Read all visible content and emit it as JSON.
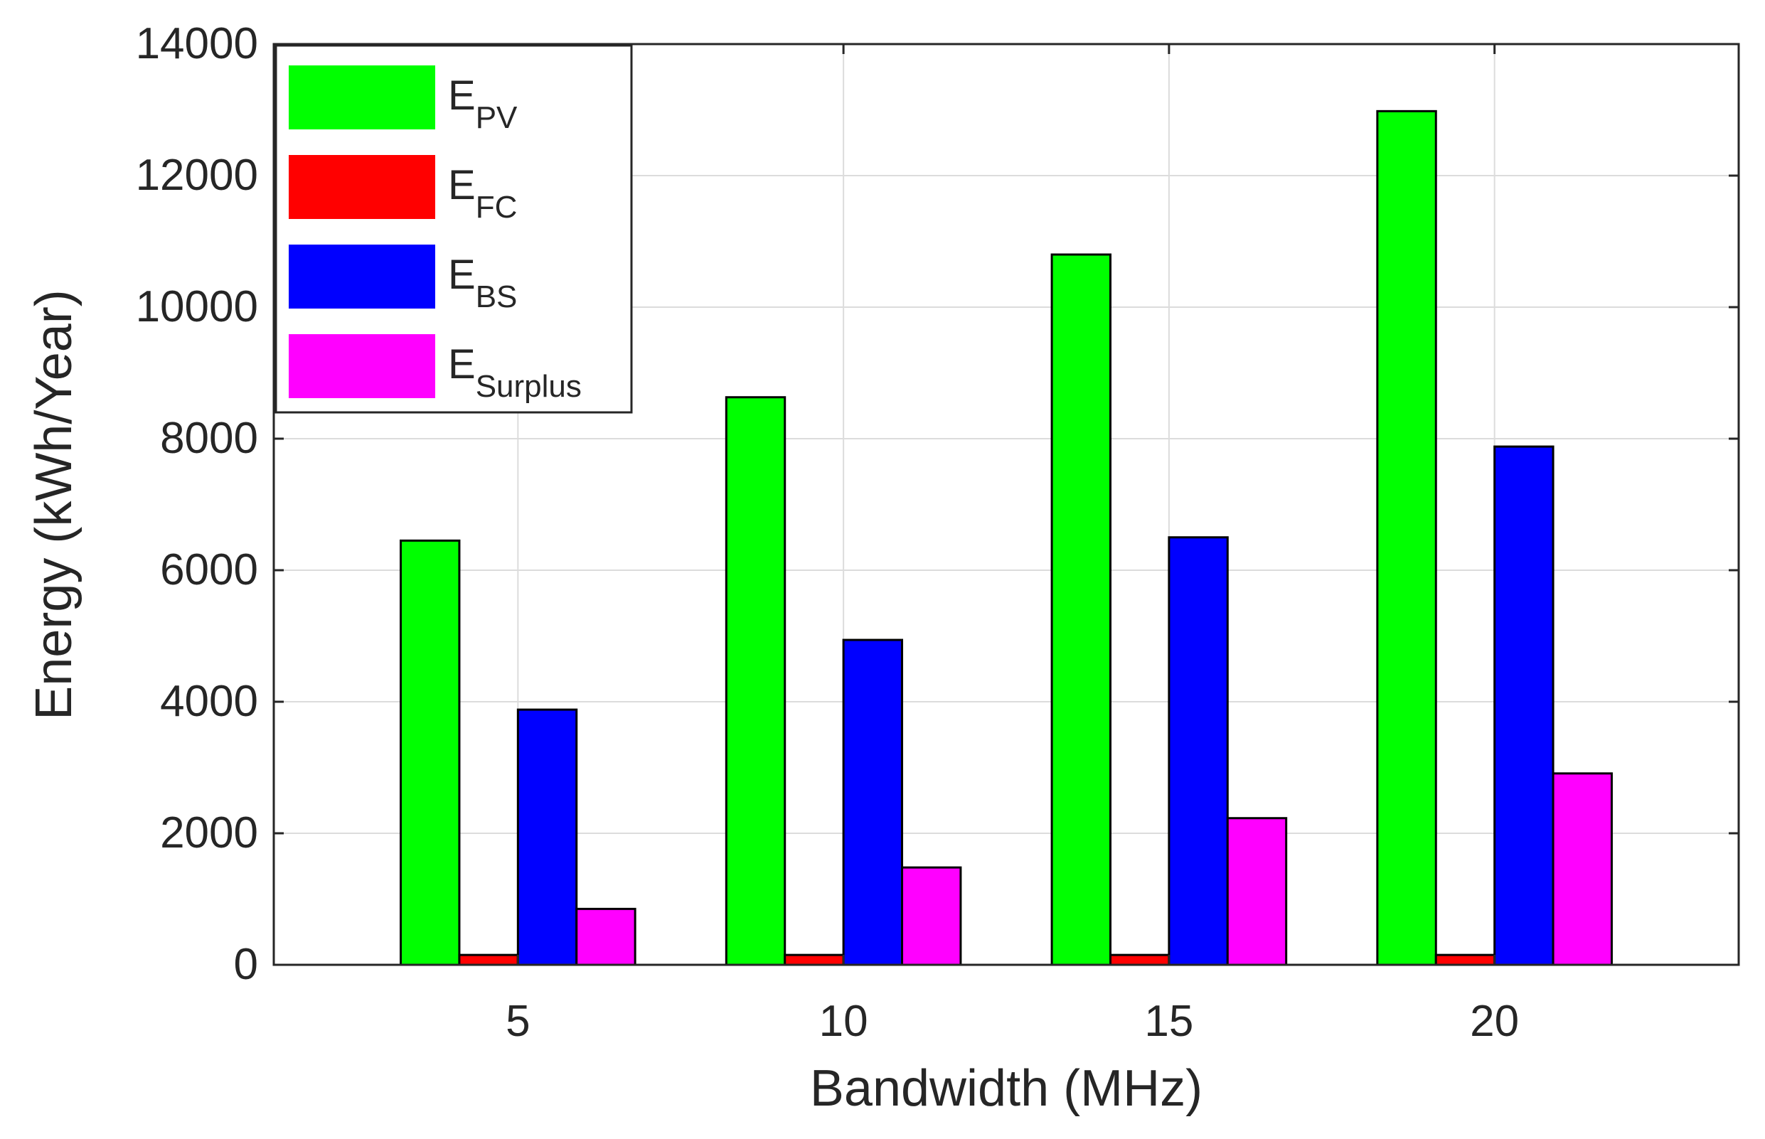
{
  "chart_data": {
    "type": "bar",
    "title": "",
    "xlabel": "Bandwidth (MHz)",
    "ylabel": "Energy (kWh/Year)",
    "categories": [
      "5",
      "10",
      "15",
      "20"
    ],
    "ylim": [
      0,
      14000
    ],
    "yticks": [
      0,
      2000,
      4000,
      6000,
      8000,
      10000,
      12000,
      14000
    ],
    "ytick_labels": [
      "0",
      "2000",
      "4000",
      "6000",
      "8000",
      "10000",
      "12000",
      "14000"
    ],
    "grid": true,
    "legend_position": "top-left",
    "series": [
      {
        "name": "E_PV",
        "label_main": "E",
        "label_sub": "PV",
        "color": "#00ff00",
        "values": [
          6450,
          8630,
          10800,
          12980
        ]
      },
      {
        "name": "E_FC",
        "label_main": "E",
        "label_sub": "FC",
        "color": "#ff0000",
        "values": [
          150,
          150,
          150,
          150
        ]
      },
      {
        "name": "E_BS",
        "label_main": "E",
        "label_sub": "BS",
        "color": "#0000ff",
        "values": [
          3880,
          4940,
          6500,
          7880
        ]
      },
      {
        "name": "E_Surplus",
        "label_main": "E",
        "label_sub": "Surplus",
        "color": "#ff00ff",
        "values": [
          850,
          1480,
          2230,
          2910
        ]
      }
    ]
  }
}
